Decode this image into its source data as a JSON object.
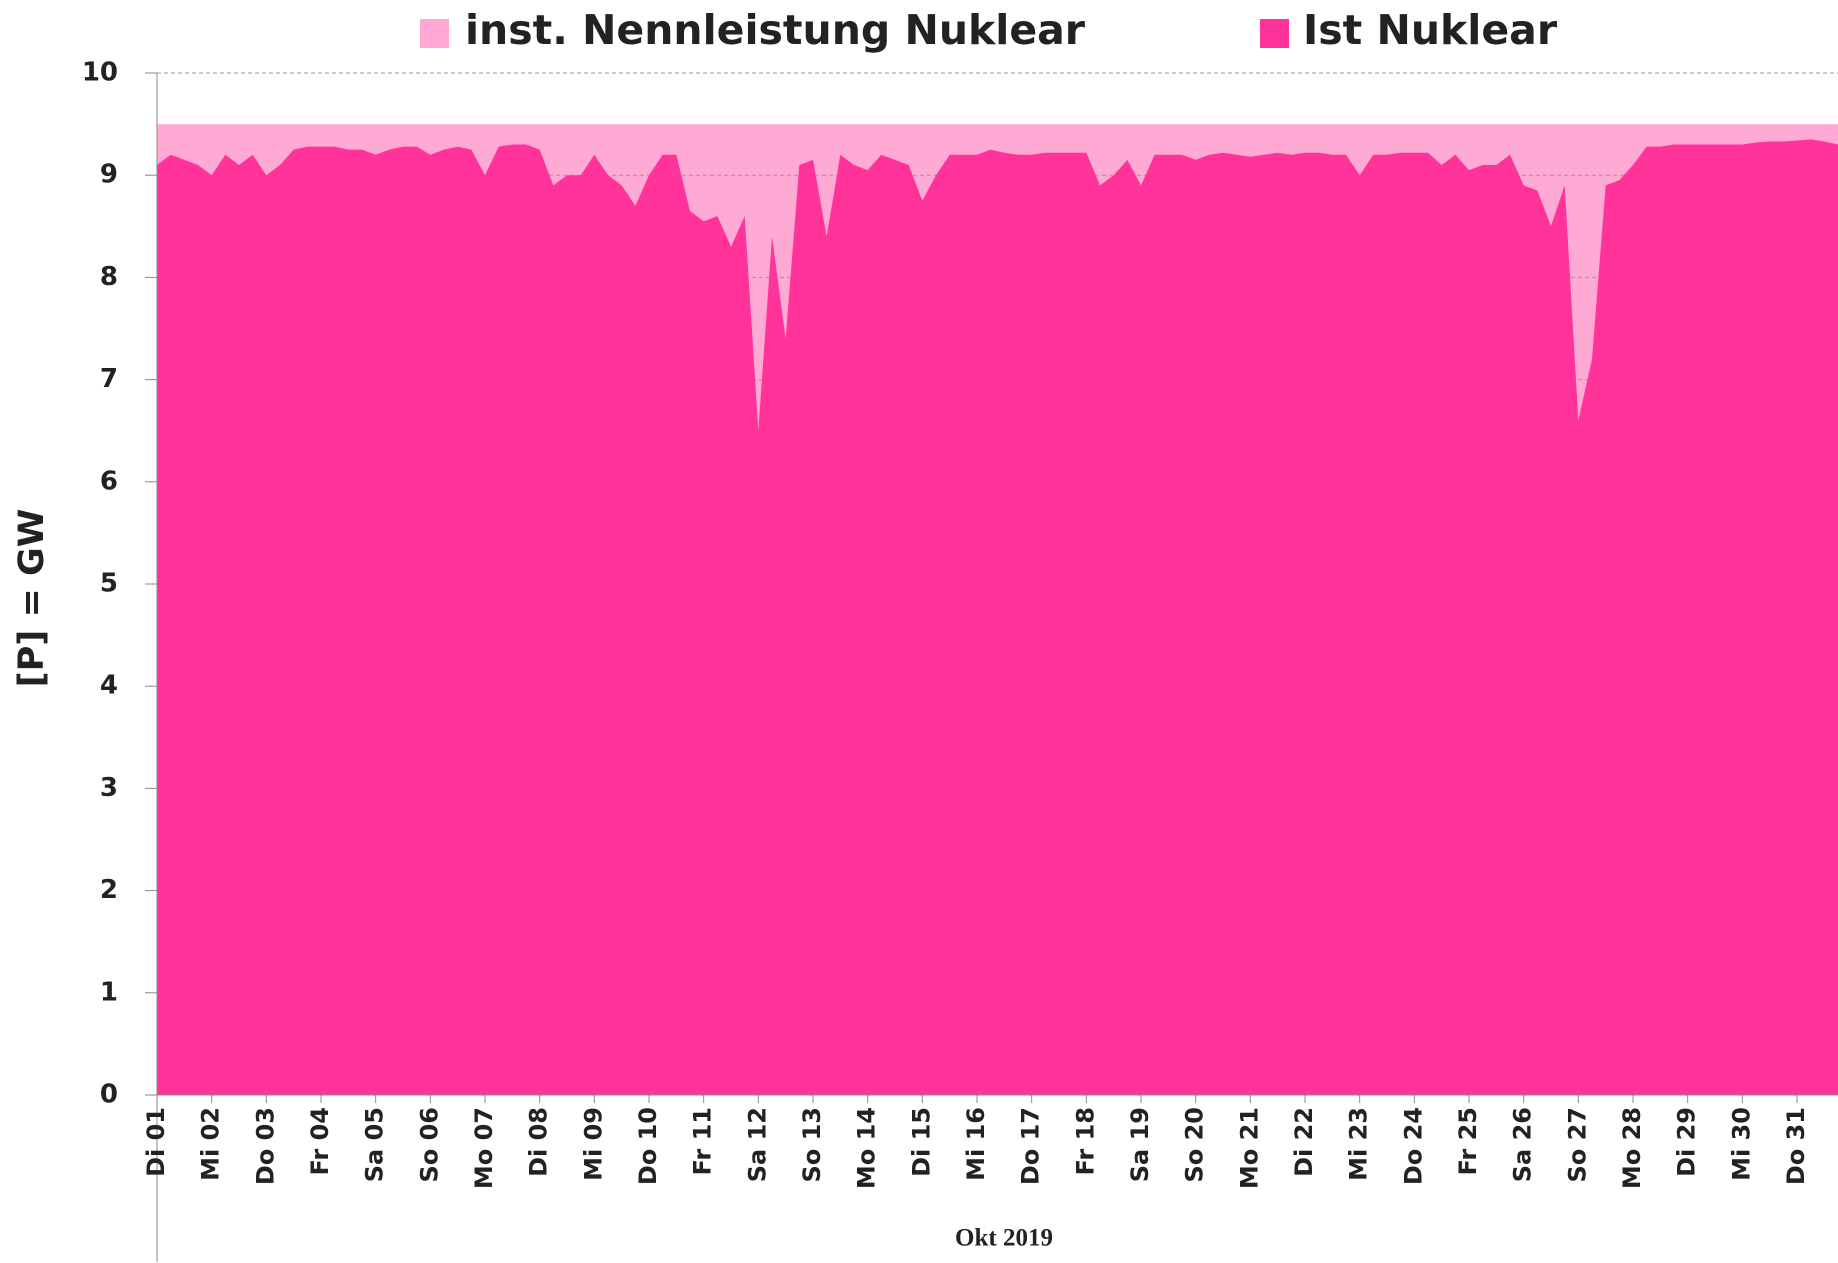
{
  "chart_data": {
    "type": "area",
    "xlabel": "Okt 2019",
    "ylabel": "[P]  =  GW",
    "categories": [
      "Di 01",
      null,
      null,
      null,
      "Mi 02",
      null,
      null,
      null,
      "Do 03",
      null,
      null,
      null,
      "Fr 04",
      null,
      null,
      null,
      "Sa 05",
      null,
      null,
      null,
      "So 06",
      null,
      null,
      null,
      "Mo 07",
      null,
      null,
      null,
      "Di 08",
      null,
      null,
      null,
      "Mi 09",
      null,
      null,
      null,
      "Do 10",
      null,
      null,
      null,
      "Fr 11",
      null,
      null,
      null,
      "Sa 12",
      null,
      null,
      null,
      "So 13",
      null,
      null,
      null,
      "Mo 14",
      null,
      null,
      null,
      "Di 15",
      null,
      null,
      null,
      "Mi 16",
      null,
      null,
      null,
      "Do 17",
      null,
      null,
      null,
      "Fr 18",
      null,
      null,
      null,
      "Sa 19",
      null,
      null,
      null,
      "So 20",
      null,
      null,
      null,
      "Mo 21",
      null,
      null,
      null,
      "Di 22",
      null,
      null,
      null,
      "Mi 23",
      null,
      null,
      null,
      "Do 24",
      null,
      null,
      null,
      "Fr 25",
      null,
      null,
      null,
      "Sa 26",
      null,
      null,
      null,
      "So 27",
      null,
      null,
      null,
      "Mo 28",
      null,
      null,
      null,
      "Di 29",
      null,
      null,
      null,
      "Mi 30",
      null,
      null,
      null,
      "Do 31",
      null,
      null,
      null
    ],
    "series": [
      {
        "name": "inst. Nennleistung Nuklear",
        "color": "#ffaad4",
        "values": [
          9.5,
          9.5,
          9.5,
          9.5,
          9.5,
          9.5,
          9.5,
          9.5,
          9.5,
          9.5,
          9.5,
          9.5,
          9.5,
          9.5,
          9.5,
          9.5,
          9.5,
          9.5,
          9.5,
          9.5,
          9.5,
          9.5,
          9.5,
          9.5,
          9.5,
          9.5,
          9.5,
          9.5,
          9.5,
          9.5,
          9.5,
          9.5,
          9.5,
          9.5,
          9.5,
          9.5,
          9.5,
          9.5,
          9.5,
          9.5,
          9.5,
          9.5,
          9.5,
          9.5,
          9.5,
          9.5,
          9.5,
          9.5,
          9.5,
          9.5,
          9.5,
          9.5,
          9.5,
          9.5,
          9.5,
          9.5,
          9.5,
          9.5,
          9.5,
          9.5,
          9.5,
          9.5,
          9.5,
          9.5,
          9.5,
          9.5,
          9.5,
          9.5,
          9.5,
          9.5,
          9.5,
          9.5,
          9.5,
          9.5,
          9.5,
          9.5,
          9.5,
          9.5,
          9.5,
          9.5,
          9.5,
          9.5,
          9.5,
          9.5,
          9.5,
          9.5,
          9.5,
          9.5,
          9.5,
          9.5,
          9.5,
          9.5,
          9.5,
          9.5,
          9.5,
          9.5,
          9.5,
          9.5,
          9.5,
          9.5,
          9.5,
          9.5,
          9.5,
          9.5,
          9.5,
          9.5,
          9.5,
          9.5,
          9.5,
          9.5,
          9.5,
          9.5,
          9.5,
          9.5,
          9.5,
          9.5,
          9.5,
          9.5,
          9.5,
          9.5,
          9.5,
          9.5,
          9.5,
          9.5
        ]
      },
      {
        "name": "Ist Nuklear",
        "color": "#ff3399",
        "values": [
          9.1,
          9.2,
          9.15,
          9.1,
          9.0,
          9.2,
          9.1,
          9.2,
          9.0,
          9.1,
          9.25,
          9.28,
          9.28,
          9.28,
          9.25,
          9.25,
          9.2,
          9.25,
          9.28,
          9.28,
          9.2,
          9.25,
          9.28,
          9.25,
          9.0,
          9.28,
          9.3,
          9.3,
          9.25,
          8.9,
          9.0,
          9.0,
          9.2,
          9.0,
          8.9,
          8.7,
          9.0,
          9.2,
          9.2,
          8.65,
          8.55,
          8.6,
          8.3,
          8.6,
          6.5,
          8.4,
          7.4,
          9.1,
          9.15,
          8.4,
          9.2,
          9.1,
          9.05,
          9.2,
          9.15,
          9.1,
          8.75,
          9.0,
          9.2,
          9.2,
          9.2,
          9.25,
          9.22,
          9.2,
          9.2,
          9.22,
          9.22,
          9.22,
          9.22,
          8.9,
          9.0,
          9.15,
          8.9,
          9.2,
          9.2,
          9.2,
          9.15,
          9.2,
          9.22,
          9.2,
          9.18,
          9.2,
          9.22,
          9.2,
          9.22,
          9.22,
          9.2,
          9.2,
          9.0,
          9.2,
          9.2,
          9.22,
          9.22,
          9.22,
          9.1,
          9.2,
          9.05,
          9.1,
          9.1,
          9.2,
          8.9,
          8.85,
          8.5,
          8.9,
          6.6,
          7.2,
          8.9,
          8.95,
          9.1,
          9.28,
          9.28,
          9.3,
          9.3,
          9.3,
          9.3,
          9.3,
          9.3,
          9.32,
          9.33,
          9.33,
          9.34,
          9.35,
          9.33,
          9.3
        ]
      }
    ],
    "ylim": [
      0,
      10
    ],
    "yticks": [
      0,
      1,
      2,
      3,
      4,
      5,
      6,
      7,
      8,
      9,
      10
    ],
    "grid": true
  }
}
